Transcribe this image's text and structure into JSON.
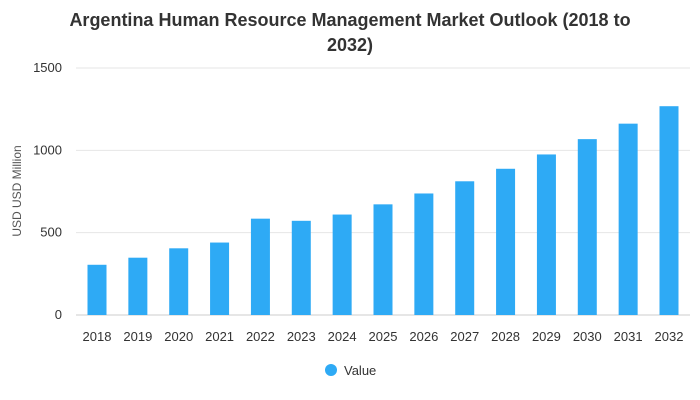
{
  "chart_data": {
    "type": "bar",
    "title_line1": "Argentina Human Resource Management Market Outlook (2018 to",
    "title_line2": "2032)",
    "categories": [
      "2018",
      "2019",
      "2020",
      "2021",
      "2022",
      "2023",
      "2024",
      "2025",
      "2026",
      "2027",
      "2028",
      "2029",
      "2030",
      "2031",
      "2032"
    ],
    "series": [
      {
        "name": "Value",
        "values": [
          305,
          348,
          405,
          440,
          585,
          572,
          610,
          672,
          738,
          812,
          888,
          975,
          1068,
          1162,
          1268
        ]
      }
    ],
    "ylabel": "USD USD Million",
    "xlabel": "",
    "ylim": [
      0,
      1500
    ],
    "yticks": [
      0,
      500,
      1000,
      1500
    ],
    "grid": true,
    "legend_position": "bottom-center",
    "bar_color": "#2eaaf5",
    "grid_color": "#e6e6e6"
  }
}
